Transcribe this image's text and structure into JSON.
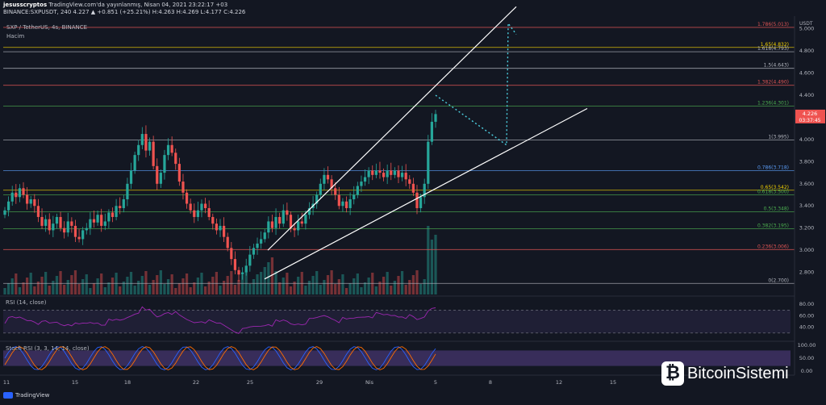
{
  "header": {
    "publisher": "jesusscryptos",
    "published": "TradingView.com'da yayınlanmış, Nisan 04, 2021 23:22:17 +03",
    "ohlc": "BINANCE:SXPUSDT, 240  4.227  ▲ +0.851 (+25.21%) H:4.263 H:4.269 L:4.177 C:4.226",
    "symbol": "SXP / TetherUS, 4s, BINANCE",
    "volume_label": "Hacim",
    "rsi_label": "RSI (14, close)",
    "stoch_label": "Stoch RSI (3, 3, 14, 14, close)",
    "currency": "USDT"
  },
  "footer": {
    "tradingview": "TradingView"
  },
  "watermark": {
    "text": "BitcoinSistemi"
  },
  "chart_data": [
    {
      "type": "candlestick",
      "symbol": "SXP / TetherUS",
      "timeframe": "4s",
      "exchange": "BINANCE",
      "ylim": [
        2.6,
        5.1
      ],
      "y_ticks": [
        5.0,
        4.8,
        4.6,
        4.4,
        4.2,
        4.0,
        3.8,
        3.6,
        3.4,
        3.2,
        3.0,
        2.8
      ],
      "x_ticks": [
        "11",
        "15",
        "18",
        "22",
        "25",
        "29",
        "Nis",
        "5",
        "8",
        "12",
        "15"
      ],
      "last_price": "4.226",
      "countdown": "03:37:45",
      "fib_levels": [
        {
          "label": "1.786(5.013)",
          "value": 5.013,
          "color": "#e05555"
        },
        {
          "label": "1.65(4.832)",
          "value": 4.832,
          "color": "#f5d300"
        },
        {
          "label": "1.618(4.793)",
          "value": 4.793,
          "color": "#b2b5be"
        },
        {
          "label": "1.5(4.643)",
          "value": 4.643,
          "color": "#b2b5be"
        },
        {
          "label": "1.382(4.490)",
          "value": 4.49,
          "color": "#e05555"
        },
        {
          "label": "1.236(4.301)",
          "value": 4.301,
          "color": "#4caf50"
        },
        {
          "label": "1(3.995)",
          "value": 3.995,
          "color": "#b2b5be"
        },
        {
          "label": "0.786(3.718)",
          "value": 3.718,
          "color": "#5b9cf6"
        },
        {
          "label": "0.65(3.542)",
          "value": 3.542,
          "color": "#f5d300"
        },
        {
          "label": "0.618(3.500)",
          "value": 3.5,
          "color": "#4caf50"
        },
        {
          "label": "0.5(3.348)",
          "value": 3.348,
          "color": "#4caf50"
        },
        {
          "label": "0.382(3.195)",
          "value": 3.195,
          "color": "#4caf50"
        },
        {
          "label": "0.236(3.006)",
          "value": 3.006,
          "color": "#e05555"
        },
        {
          "label": "0(2.700)",
          "value": 2.7,
          "color": "#b2b5be"
        }
      ],
      "close_series": [
        3.36,
        3.44,
        3.52,
        3.48,
        3.56,
        3.5,
        3.42,
        3.46,
        3.4,
        3.3,
        3.22,
        3.28,
        3.18,
        3.24,
        3.3,
        3.2,
        3.16,
        3.26,
        3.22,
        3.12,
        3.1,
        3.18,
        3.2,
        3.28,
        3.25,
        3.32,
        3.22,
        3.26,
        3.34,
        3.3,
        3.4,
        3.38,
        3.46,
        3.6,
        3.72,
        3.86,
        3.95,
        4.05,
        3.9,
        3.98,
        3.76,
        3.6,
        3.7,
        3.86,
        3.95,
        3.88,
        3.78,
        3.62,
        3.52,
        3.42,
        3.36,
        3.3,
        3.36,
        3.42,
        3.38,
        3.3,
        3.24,
        3.18,
        3.22,
        3.12,
        3.02,
        2.92,
        2.82,
        2.78,
        2.8,
        2.86,
        2.96,
        3.02,
        3.06,
        3.1,
        3.16,
        3.26,
        3.2,
        3.3,
        3.24,
        3.36,
        3.32,
        3.2,
        3.18,
        3.26,
        3.24,
        3.32,
        3.38,
        3.42,
        3.5,
        3.6,
        3.68,
        3.64,
        3.56,
        3.5,
        3.4,
        3.44,
        3.38,
        3.46,
        3.5,
        3.58,
        3.62,
        3.66,
        3.72,
        3.68,
        3.72,
        3.7,
        3.66,
        3.72,
        3.68,
        3.72,
        3.66,
        3.7,
        3.64,
        3.6,
        3.52,
        3.38,
        3.48,
        3.6,
        3.98,
        4.16,
        4.23
      ]
    },
    {
      "type": "line",
      "name": "RSI (14, close)",
      "ylim": [
        20,
        90
      ],
      "y_ticks": [
        80.0,
        60.0,
        40.0
      ],
      "bands": [
        70,
        30
      ]
    },
    {
      "type": "line",
      "name": "Stoch RSI (3, 3, 14, 14, close)",
      "ylim": [
        0,
        100
      ],
      "y_ticks": [
        100.0,
        50.0,
        0.0
      ],
      "bands": [
        80,
        20
      ]
    }
  ]
}
